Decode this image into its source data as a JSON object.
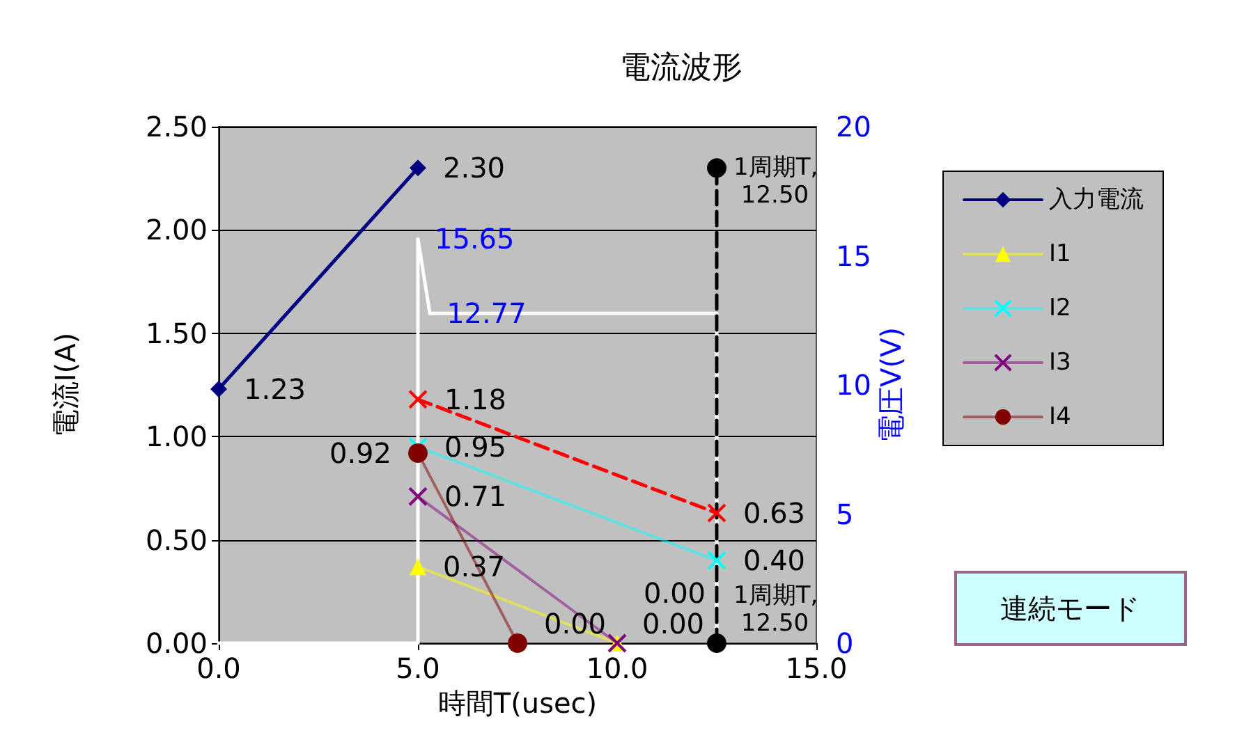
{
  "chart_data": {
    "type": "line",
    "title": "電流波形",
    "xlabel": "時間T(usec)",
    "ylabel": "電流I(A)",
    "y2label": "電圧V(V)",
    "xlim": [
      0,
      15
    ],
    "xticks": [
      {
        "value": 0,
        "label": "0.0"
      },
      {
        "value": 5,
        "label": "5.0"
      },
      {
        "value": 10,
        "label": "10.0"
      },
      {
        "value": 15,
        "label": "15.0"
      }
    ],
    "ylim": [
      0,
      2.5
    ],
    "yticks": [
      {
        "value": 0,
        "label": "0.00"
      },
      {
        "value": 0.5,
        "label": "0.50"
      },
      {
        "value": 1,
        "label": "1.00"
      },
      {
        "value": 1.5,
        "label": "1.50"
      },
      {
        "value": 2,
        "label": "2.00"
      },
      {
        "value": 2.5,
        "label": "2.50"
      }
    ],
    "y2lim": [
      0,
      20
    ],
    "y2ticks": [
      0,
      5,
      10,
      15,
      20
    ],
    "grid": "y",
    "legend": "right",
    "annotations": [
      "連続モード",
      {
        "text": "1周期T, 12.50",
        "x": 12.5,
        "y": 2.3
      },
      {
        "text": "1周期T, 12.50",
        "x": 12.5,
        "y": 0
      }
    ],
    "series": [
      {
        "name": "入力電流",
        "color": "#000080",
        "marker": "diamond",
        "x": [
          0,
          5
        ],
        "values": [
          1.23,
          2.3
        ],
        "value_labels": [
          "1.23",
          "2.30"
        ]
      },
      {
        "name": "I1",
        "color": "#ffff00",
        "marker": "triangle",
        "x": [
          5,
          10
        ],
        "values": [
          0.37,
          0.0
        ],
        "value_labels": [
          "0.37",
          "0.00"
        ]
      },
      {
        "name": "I2",
        "color": "#00ffff",
        "marker": "cross",
        "x": [
          5,
          12.5
        ],
        "values": [
          0.95,
          0.4
        ],
        "value_labels": [
          "0.95",
          "0.40"
        ]
      },
      {
        "name": "I3",
        "color": "#800080",
        "marker": "cross",
        "x": [
          5,
          10
        ],
        "values": [
          0.71,
          0.0
        ],
        "value_labels": [
          "0.71",
          "0.00"
        ]
      },
      {
        "name": "I4",
        "color": "#800000",
        "marker": "circle",
        "x": [
          5,
          7.5
        ],
        "values": [
          0.92,
          0.0
        ],
        "value_labels": [
          "0.92",
          "0.00"
        ]
      },
      {
        "color": "#ff0000",
        "marker": "cross",
        "line_style": "dashed",
        "x": [
          5,
          12.5
        ],
        "values": [
          1.18,
          0.63
        ],
        "value_labels": [
          "1.18",
          "0.63"
        ]
      },
      {
        "color": "#ffffff",
        "marker": "none",
        "axis": "y2",
        "x": [
          0,
          5,
          5,
          5.3,
          12.5,
          12.5
        ],
        "values": [
          0,
          0,
          15.65,
          12.77,
          12.77,
          0
        ],
        "value_labels": [
          null,
          null,
          "15.65",
          "12.77",
          null,
          null
        ]
      },
      {
        "color": "#000000",
        "marker": "circle",
        "line_style": "dashed",
        "x": [
          12.5,
          12.5
        ],
        "values": [
          0,
          2.3
        ]
      }
    ]
  }
}
